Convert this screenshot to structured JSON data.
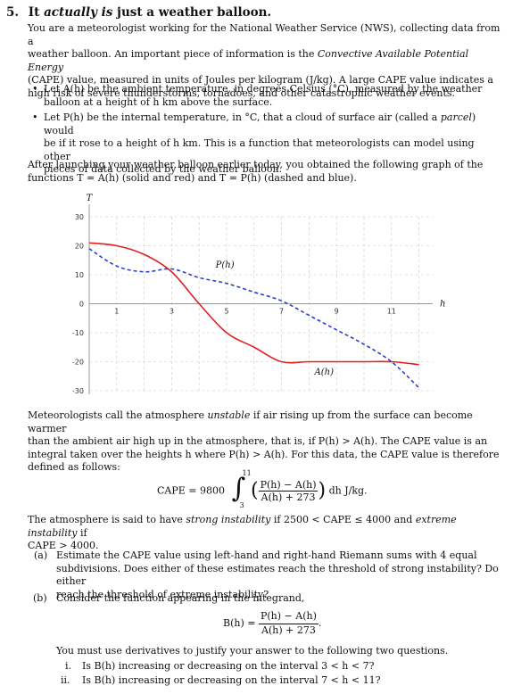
{
  "header": {
    "number": "5.",
    "title_pre": "It ",
    "title_it": "actually is",
    "title_post": " just a weather balloon."
  },
  "intro": {
    "l1": "You are a meteorologist working for the National Weather Service (NWS), collecting data from a",
    "l2a": "weather balloon. An important piece of information is the ",
    "l2b": "Convective Available Potential Energy",
    "l3": "(CAPE) value, measured in units of Joules per kilogram (J/kg). A large CAPE value indicates a",
    "l4": "high risk of severe thunderstorms, tornadoes, and other catastrophic weather events."
  },
  "bullets": [
    {
      "l1": "Let A(h) be the ambient temperature, in degrees Celsius (°C), measured by the weather",
      "l2": "balloon at a height of h km above the surface."
    },
    {
      "l1a": "Let P(h) be the internal temperature, in °C, that a cloud of surface air (called a ",
      "l1b": "parcel",
      "l1c": ") would",
      "l2": "be if it rose to a height of h km. This is a function that meteorologists can model using other",
      "l3": "pieces of data collected by the weather balloon."
    }
  ],
  "after": {
    "l1": "After launching your weather balloon earlier today, you obtained the following graph of the",
    "l2": "functions T = A(h) (solid and red) and T = P(h) (dashed and blue)."
  },
  "chart_data": {
    "type": "line",
    "xlabel": "h",
    "ylabel": "T",
    "xlim": [
      0,
      12.5
    ],
    "ylim": [
      -30,
      30
    ],
    "x_ticks": [
      1,
      3,
      5,
      7,
      9,
      11
    ],
    "y_ticks": [
      30,
      20,
      10,
      0,
      -10,
      -20,
      -30
    ],
    "grid": true,
    "annotations": [
      "P(h)",
      "A(h)"
    ],
    "series": [
      {
        "name": "A(h)",
        "style": "solid",
        "color": "#e02020",
        "x": [
          0,
          1,
          2,
          3,
          4,
          5,
          6,
          7,
          8,
          9,
          10,
          11,
          12
        ],
        "y": [
          21,
          20,
          17,
          11,
          0,
          -10,
          -15,
          -20,
          -20,
          -20,
          -20,
          -20,
          -21
        ]
      },
      {
        "name": "P(h)",
        "style": "dashed",
        "color": "#2a3fd0",
        "x": [
          0,
          1,
          2,
          3,
          4,
          5,
          6,
          7,
          8,
          9,
          10,
          11,
          12
        ],
        "y": [
          19,
          13,
          11,
          12,
          9,
          7,
          4,
          1,
          -4,
          -9,
          -14,
          -20,
          -29
        ]
      }
    ]
  },
  "para2": {
    "l1a": "Meteorologists call the atmosphere ",
    "l1b": "unstable",
    "l1c": " if air rising up from the surface can become warmer",
    "l2": "than the ambient air high up in the atmosphere, that is, if P(h) > A(h). The CAPE value is an",
    "l3": "integral taken over the heights h where P(h) > A(h). For this data, the CAPE value is therefore",
    "l4": "defined as follows:"
  },
  "equation": {
    "lhs": "CAPE = 9800",
    "upper": "11",
    "lower": "3",
    "numerator": "P(h) − A(h)",
    "denominator": "A(h) + 273",
    "tail": "dh J/kg."
  },
  "para3": {
    "l1a": "The atmosphere is said to have ",
    "l1b": "strong instability",
    "l1c": " if 2500 < CAPE ≤ 4000 and ",
    "l1d": "extreme instability",
    "l1e": " if",
    "l2": "CAPE > 4000."
  },
  "parts": {
    "a_label": "(a)",
    "a1": "Estimate the CAPE value using left-hand and right-hand Riemann sums with 4 equal",
    "a2": "subdivisions. Does either of these estimates reach the threshold of strong instability? Do either",
    "a3": "reach the threshold of extreme instability?",
    "b_label": "(b)",
    "b1": "Consider the function appearing in the integrand,",
    "b_lhs": "B(h) =",
    "b_num": "P(h) − A(h)",
    "b_den": "A(h) + 273",
    "b_tail": ".",
    "b2": "You must use derivatives to justify your answer to the following two questions.",
    "i_label": "i.",
    "i_text": "Is B(h) increasing or decreasing on the interval 3 < h < 7?",
    "ii_label": "ii.",
    "ii_text": "Is B(h) increasing or decreasing on the interval 7 < h < 11?"
  }
}
